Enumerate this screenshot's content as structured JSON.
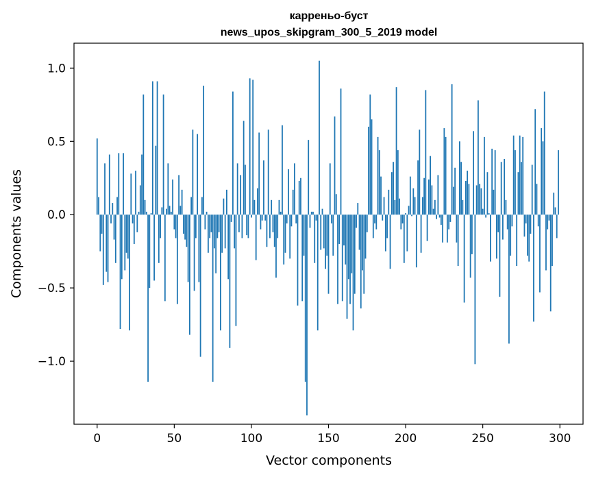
{
  "chart_data": {
    "type": "bar",
    "title_line1": "карреньо-буст",
    "title_line2": "news_upos_skipgram_300_5_2019 model",
    "xlabel": "Vector components",
    "ylabel": "Components values",
    "xlim": [
      -15,
      315
    ],
    "ylim": [
      -1.43,
      1.17
    ],
    "xticks": [
      0,
      50,
      100,
      150,
      200,
      250,
      300
    ],
    "xtick_labels": [
      "0",
      "50",
      "100",
      "150",
      "200",
      "250",
      "300"
    ],
    "yticks": [
      -1.0,
      -0.5,
      0.0,
      0.5,
      1.0
    ],
    "ytick_labels": [
      "−1.0",
      "−0.5",
      "0.0",
      "0.5",
      "1.0"
    ],
    "grid": false,
    "bar_color": "#1f77b4",
    "values": [
      0.52,
      0.12,
      -0.25,
      -0.13,
      -0.48,
      0.35,
      -0.39,
      -0.46,
      0.41,
      -0.06,
      0.08,
      -0.17,
      -0.33,
      0.12,
      0.42,
      -0.78,
      -0.44,
      0.42,
      -0.38,
      -0.26,
      -0.3,
      -0.79,
      0.28,
      -0.06,
      -0.2,
      0.3,
      -0.12,
      0.02,
      0.2,
      0.41,
      0.82,
      0.1,
      0.02,
      -1.14,
      -0.5,
      0.01,
      0.91,
      -0.45,
      0.47,
      0.91,
      -0.33,
      -0.16,
      0.05,
      0.82,
      -0.59,
      0.04,
      0.35,
      0.06,
      0.02,
      0.24,
      -0.1,
      -0.16,
      -0.61,
      0.27,
      0.06,
      0.17,
      -0.13,
      -0.17,
      -0.22,
      -0.46,
      -0.82,
      0.12,
      0.58,
      -0.52,
      -0.16,
      0.55,
      -0.46,
      -0.97,
      0.12,
      0.88,
      -0.1,
      0.02,
      -0.26,
      -0.16,
      -0.12,
      -1.14,
      -0.23,
      -0.4,
      -0.16,
      -0.12,
      -0.79,
      -0.26,
      0.11,
      -0.23,
      0.17,
      -0.44,
      -0.91,
      -0.05,
      0.84,
      -0.23,
      -0.76,
      0.35,
      -0.12,
      0.27,
      -0.16,
      0.64,
      0.34,
      -0.14,
      -0.16,
      0.93,
      -0.02,
      0.92,
      0.1,
      -0.31,
      0.18,
      0.56,
      -0.1,
      -0.04,
      0.37,
      -0.04,
      -0.22,
      0.58,
      -0.16,
      0.1,
      -0.12,
      -0.22,
      -0.43,
      -0.16,
      0.1,
      0.02,
      0.61,
      -0.34,
      -0.26,
      -0.06,
      0.31,
      -0.3,
      -0.08,
      0.17,
      0.35,
      -0.06,
      -0.62,
      0.23,
      0.25,
      -0.59,
      -0.28,
      -1.14,
      -1.37,
      0.51,
      -0.09,
      0.02,
      0.02,
      -0.33,
      -0.04,
      -0.79,
      1.05,
      -0.24,
      0.04,
      -0.23,
      -0.37,
      -0.28,
      -0.54,
      0.35,
      -0.06,
      -0.28,
      0.67,
      0.14,
      -0.61,
      -0.2,
      0.86,
      -0.59,
      -0.21,
      -0.34,
      -0.71,
      -0.44,
      -0.61,
      -0.4,
      -0.79,
      -0.54,
      -0.09,
      0.08,
      -0.24,
      -0.64,
      -0.38,
      -0.54,
      -0.3,
      -0.12,
      0.6,
      0.82,
      0.65,
      -0.16,
      -0.06,
      -0.1,
      0.53,
      0.44,
      0.26,
      -0.04,
      0.12,
      -0.25,
      -0.16,
      0.17,
      -0.37,
      0.29,
      0.36,
      0.1,
      0.87,
      0.44,
      0.11,
      -0.1,
      -0.06,
      -0.33,
      0.01,
      -0.25,
      0.06,
      0.26,
      -0.01,
      0.18,
      0.12,
      -0.36,
      0.37,
      0.58,
      -0.26,
      0.12,
      0.25,
      0.85,
      -0.18,
      0.24,
      0.4,
      0.2,
      0.04,
      0.1,
      -0.03,
      0.27,
      -0.02,
      -0.07,
      -0.19,
      0.59,
      0.53,
      -0.19,
      -0.1,
      -0.05,
      0.89,
      0.19,
      0.32,
      -0.19,
      -0.35,
      0.5,
      0.36,
      0.1,
      -0.6,
      0.23,
      0.3,
      0.21,
      -0.43,
      -0.27,
      0.57,
      -1.02,
      0.2,
      0.78,
      0.21,
      0.18,
      0.04,
      0.53,
      -0.02,
      0.29,
      0.01,
      -0.32,
      0.45,
      0.17,
      0.44,
      -0.3,
      -0.12,
      -0.56,
      0.36,
      -0.17,
      0.38,
      0.1,
      -0.1,
      -0.88,
      -0.28,
      -0.08,
      0.54,
      0.44,
      -0.35,
      0.29,
      0.54,
      0.36,
      0.53,
      -0.15,
      -0.06,
      -0.28,
      -0.32,
      -0.13,
      0.34,
      -0.73,
      0.72,
      0.21,
      -0.08,
      -0.53,
      0.59,
      0.5,
      0.84,
      -0.38,
      -0.1,
      -0.04,
      -0.66,
      -0.35,
      0.15,
      0.05,
      -0.16,
      0.44
    ]
  }
}
